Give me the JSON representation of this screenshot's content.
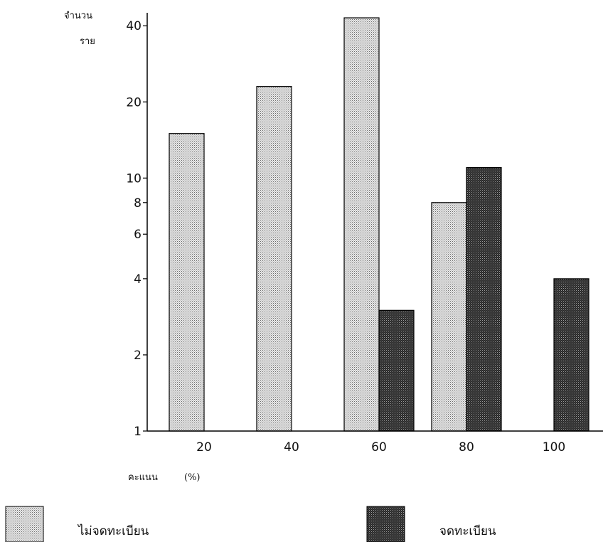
{
  "chart_data": {
    "type": "bar",
    "y_scale": "log",
    "ylim": [
      1,
      45
    ],
    "yticks": [
      1,
      2,
      4,
      6,
      8,
      10,
      20,
      40
    ],
    "ylabel_line1": "จำนวน",
    "ylabel_line2": "ราย",
    "xlabel_name": "คะแนน",
    "xlabel_unit": "(%)",
    "categories": [
      "20",
      "40",
      "60",
      "80",
      "100"
    ],
    "series": [
      {
        "name": "ไม่จดทะเบียน",
        "values": [
          15,
          23,
          43,
          8,
          1
        ],
        "color": "#cfcfcf"
      },
      {
        "name": "จดทะเบียน",
        "values": [
          null,
          1,
          3,
          11,
          4
        ],
        "color": "#3a3a3a"
      }
    ],
    "legend_position": "bottom",
    "grid": false
  }
}
